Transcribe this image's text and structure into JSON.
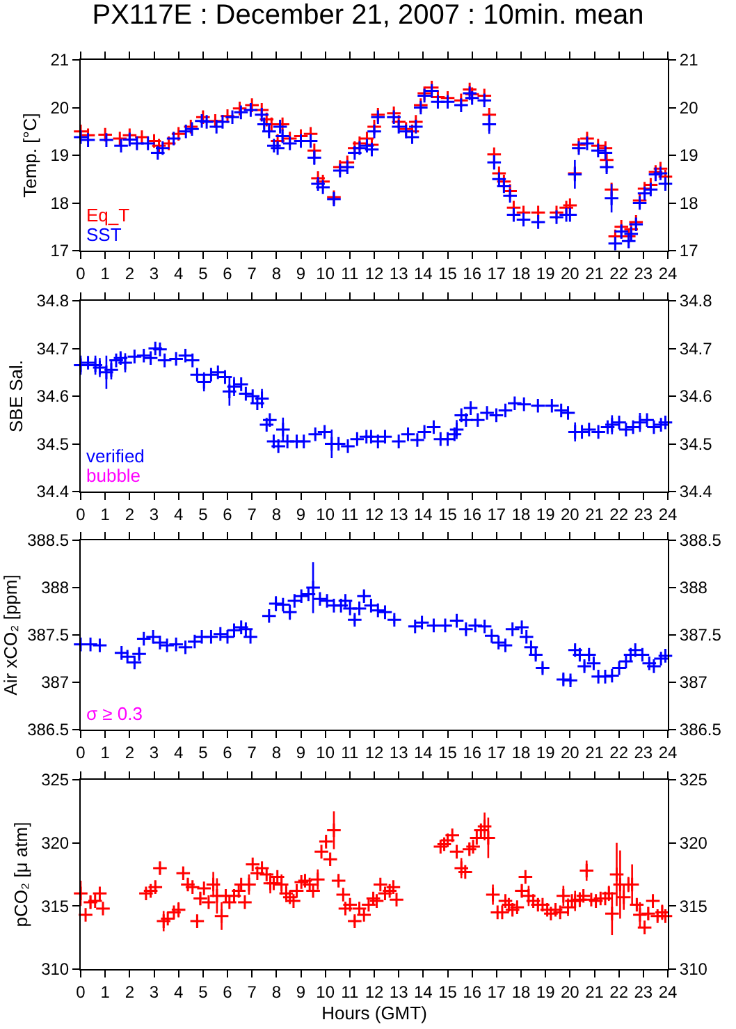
{
  "chart_data": [
    {
      "type": "scatter",
      "title": "PX117E : December 21, 2007 : 10min. mean",
      "ylabel": "Temp. [°C]",
      "xlim": [
        0,
        24
      ],
      "xticks": [
        0,
        1,
        2,
        3,
        4,
        5,
        6,
        7,
        8,
        9,
        10,
        11,
        12,
        13,
        14,
        15,
        16,
        17,
        18,
        19,
        20,
        21,
        22,
        23,
        24
      ],
      "ylim": [
        17,
        21
      ],
      "yticks": [
        17,
        18,
        19,
        20,
        21
      ],
      "y2lim": [
        17,
        21
      ],
      "y2ticks": [
        17,
        18,
        19,
        20,
        21
      ],
      "marker": "cross",
      "series": [
        {
          "name": "Eq_T",
          "color": "#ff0000",
          "x": [
            0,
            0.3,
            1,
            1.6,
            2,
            2.5,
            3,
            3.2,
            3.6,
            4,
            4.5,
            5,
            5.5,
            6,
            6.5,
            7,
            7.4,
            7.6,
            7.8,
            8.05,
            8.25,
            8.55,
            9,
            9.4,
            9.55,
            9.7,
            9.9,
            10.35,
            10.6,
            10.9,
            11.2,
            11.4,
            11.7,
            11.9,
            12,
            12.15,
            12.8,
            13,
            13.3,
            13.55,
            13.7,
            13.9,
            14.05,
            14.35,
            14.6,
            15,
            15.55,
            15.9,
            16,
            16.5,
            16.7,
            16.9,
            17.1,
            17.3,
            17.55,
            17.7,
            18.1,
            18.7,
            19.45,
            19.85,
            20,
            20.2,
            20.36,
            20.7,
            21.15,
            21.45,
            21.5,
            21.7,
            21.85,
            22.1,
            22.4,
            22.5,
            22.7,
            22.85,
            23.05,
            23.3,
            23.5,
            23.7,
            23.9
          ],
          "values": [
            19.5,
            19.42,
            19.43,
            19.35,
            19.42,
            19.38,
            19.3,
            19.2,
            19.25,
            19.45,
            19.6,
            19.8,
            19.72,
            19.82,
            19.98,
            20.05,
            19.95,
            19.75,
            19.65,
            19.3,
            19.65,
            19.35,
            19.4,
            19.45,
            19.1,
            18.52,
            18.45,
            18.12,
            18.75,
            18.85,
            19.15,
            19.25,
            19.35,
            19.22,
            19.6,
            19.85,
            19.88,
            19.7,
            19.55,
            19.5,
            19.7,
            20.05,
            20.3,
            20.42,
            20.22,
            20.2,
            20.15,
            20.38,
            20.28,
            20.25,
            19.85,
            19.02,
            18.62,
            18.45,
            18.25,
            17.9,
            17.8,
            17.8,
            17.8,
            17.9,
            17.95,
            18.62,
            19.22,
            19.35,
            19.2,
            19.15,
            18.9,
            18.28,
            17.3,
            17.5,
            17.3,
            17.45,
            17.6,
            18.05,
            18.3,
            18.38,
            18.65,
            18.72,
            18.55
          ]
        },
        {
          "name": "SST",
          "color": "#0000ff",
          "x": [
            0,
            0.3,
            1.05,
            1.65,
            2,
            2.3,
            2.75,
            3.15,
            3.35,
            3.8,
            4.3,
            4.55,
            4.95,
            5.15,
            5.55,
            5.8,
            6.2,
            6.55,
            6.95,
            7.4,
            7.5,
            7.7,
            7.9,
            8.05,
            8.15,
            8.25,
            8.55,
            9,
            9.4,
            9.55,
            9.7,
            9.9,
            10.35,
            10.6,
            10.9,
            11.2,
            11.4,
            11.7,
            11.9,
            12,
            12.15,
            12.8,
            13,
            13.3,
            13.55,
            13.7,
            13.9,
            14.05,
            14.35,
            14.6,
            15,
            15.55,
            15.9,
            16,
            16.5,
            16.7,
            16.9,
            17.1,
            17.3,
            17.55,
            17.7,
            18.1,
            18.7,
            19.45,
            19.85,
            20,
            20.2,
            20.36,
            20.7,
            21.15,
            21.45,
            21.5,
            21.7,
            21.85,
            22.1,
            22.4,
            22.5,
            22.7,
            22.85,
            23.05,
            23.3,
            23.5,
            23.7,
            23.9
          ],
          "values": [
            19.38,
            19.32,
            19.32,
            19.2,
            19.33,
            19.25,
            19.25,
            19.05,
            19.15,
            19.35,
            19.5,
            19.55,
            19.72,
            19.7,
            19.6,
            19.7,
            19.8,
            19.9,
            19.95,
            19.85,
            19.65,
            19.5,
            19.2,
            19.15,
            19.6,
            19.4,
            19.25,
            19.3,
            19.3,
            18.95,
            18.4,
            18.33,
            18.08,
            18.68,
            18.75,
            19.05,
            19.15,
            19.2,
            19.12,
            19.5,
            19.8,
            19.8,
            19.6,
            19.5,
            19.38,
            19.6,
            20,
            20.25,
            20.35,
            20.12,
            20.12,
            20.05,
            20.3,
            20.2,
            20.15,
            19.65,
            18.85,
            18.5,
            18.35,
            18.15,
            17.75,
            17.65,
            17.6,
            17.7,
            17.75,
            17.75,
            18.6,
            19.15,
            19.25,
            19.1,
            19.05,
            18.75,
            18.1,
            17.15,
            17.4,
            17.2,
            17.35,
            17.55,
            18,
            18.2,
            18.28,
            18.6,
            18.62,
            18.4
          ],
          "errors": [
            null,
            null,
            null,
            null,
            null,
            null,
            null,
            null,
            null,
            null,
            null,
            null,
            null,
            null,
            null,
            null,
            null,
            null,
            null,
            null,
            0.1,
            0.1,
            null,
            null,
            null,
            0.1,
            null,
            null,
            null,
            0.15,
            0.1,
            null,
            0.15,
            null,
            null,
            null,
            null,
            null,
            null,
            0.08,
            null,
            null,
            null,
            null,
            null,
            null,
            null,
            null,
            null,
            null,
            null,
            null,
            null,
            null,
            null,
            0.2,
            0.15,
            null,
            null,
            null,
            0.1,
            null,
            null,
            null,
            null,
            null,
            0.3,
            null,
            null,
            null,
            null,
            0.1,
            0.3,
            0.1,
            0.15,
            0.15,
            0.15,
            null,
            null,
            null,
            null,
            null,
            null,
            null
          ]
        }
      ]
    },
    {
      "type": "scatter",
      "ylabel": "SBE Sal.",
      "xlim": [
        0,
        24
      ],
      "xticks": [
        0,
        1,
        2,
        3,
        4,
        5,
        6,
        7,
        8,
        9,
        10,
        11,
        12,
        13,
        14,
        15,
        16,
        17,
        18,
        19,
        20,
        21,
        22,
        23,
        24
      ],
      "ylim": [
        34.4,
        34.8
      ],
      "yticks": [
        34.4,
        34.5,
        34.6,
        34.7,
        34.8
      ],
      "y2lim": [
        34.4,
        34.8
      ],
      "y2ticks": [
        34.4,
        34.5,
        34.6,
        34.7,
        34.8
      ],
      "marker": "cross",
      "series": [
        {
          "name": "verified",
          "color": "#0000ff",
          "x": [
            0,
            0.3,
            0.6,
            0.78,
            1.05,
            1.25,
            1.45,
            1.63,
            1.82,
            2.2,
            2.58,
            2.86,
            3.05,
            3.24,
            3.43,
            3.9,
            4.28,
            4.57,
            4.76,
            5.04,
            5.33,
            5.61,
            5.9,
            6.08,
            6.27,
            6.56,
            6.75,
            7.03,
            7.22,
            7.41,
            7.6,
            7.73,
            7.89,
            8.08,
            8.27,
            8.45,
            8.83,
            9.12,
            9.59,
            9.97,
            10.26,
            10.54,
            10.92,
            11.3,
            11.68,
            11.87,
            12.15,
            12.44,
            13,
            13.38,
            13.76,
            14.05,
            14.43,
            14.71,
            15,
            15.28,
            15.37,
            15.56,
            15.75,
            15.94,
            16.23,
            16.61,
            16.99,
            17.36,
            17.74,
            18.12,
            18.69,
            19.26,
            19.64,
            19.92,
            20.21,
            20.49,
            20.78,
            21.16,
            21.54,
            21.72,
            22.01,
            22.29,
            22.58,
            22.86,
            23.15,
            23.43,
            23.72,
            23.9
          ],
          "values": [
            34.665,
            34.67,
            34.665,
            34.66,
            34.65,
            34.655,
            34.675,
            34.68,
            34.67,
            34.683,
            34.685,
            34.68,
            34.7,
            34.698,
            34.675,
            34.678,
            34.685,
            34.675,
            34.645,
            34.63,
            34.645,
            34.65,
            34.64,
            34.61,
            34.62,
            34.625,
            34.605,
            34.6,
            34.585,
            34.595,
            34.54,
            34.55,
            34.505,
            34.495,
            34.53,
            34.505,
            34.505,
            34.505,
            34.52,
            34.525,
            34.5,
            34.5,
            34.495,
            34.51,
            34.515,
            34.515,
            34.505,
            34.515,
            34.505,
            34.52,
            34.508,
            34.525,
            34.535,
            34.51,
            34.51,
            34.52,
            34.53,
            34.56,
            34.55,
            34.575,
            34.55,
            34.565,
            34.56,
            34.57,
            34.585,
            34.583,
            34.58,
            34.58,
            34.57,
            34.565,
            34.525,
            34.525,
            34.53,
            34.525,
            34.535,
            34.54,
            34.545,
            34.53,
            34.535,
            34.545,
            34.55,
            34.535,
            34.54,
            34.545
          ],
          "errors": [
            0.02,
            null,
            0.02,
            0.02,
            0.035,
            0.02,
            null,
            0.01,
            0.02,
            null,
            null,
            null,
            null,
            null,
            null,
            null,
            null,
            null,
            null,
            0.02,
            null,
            null,
            null,
            0.03,
            0.02,
            null,
            null,
            null,
            null,
            0.02,
            null,
            null,
            null,
            null,
            0.025,
            null,
            null,
            null,
            null,
            null,
            0.03,
            null,
            null,
            null,
            null,
            null,
            null,
            null,
            null,
            null,
            null,
            null,
            null,
            null,
            null,
            null,
            0.02,
            null,
            null,
            null,
            null,
            null,
            null,
            null,
            null,
            null,
            null,
            null,
            null,
            null,
            0.02,
            null,
            null,
            null,
            null,
            0.02,
            null,
            null,
            null,
            0.02,
            null,
            null,
            null,
            null
          ]
        },
        {
          "name": "bubble",
          "color": "#ff00ff"
        }
      ]
    },
    {
      "type": "scatter",
      "ylabel": "Air xCO₂ [ppm]",
      "xlim": [
        0,
        24
      ],
      "xticks": [
        0,
        1,
        2,
        3,
        4,
        5,
        6,
        7,
        8,
        9,
        10,
        11,
        12,
        13,
        14,
        15,
        16,
        17,
        18,
        19,
        20,
        21,
        22,
        23,
        24
      ],
      "ylim": [
        386.5,
        388.5
      ],
      "yticks": [
        386.5,
        387,
        387.5,
        388,
        388.5
      ],
      "y2lim": [
        386.5,
        388.5
      ],
      "y2ticks": [
        386.5,
        387,
        387.5,
        388,
        388.5
      ],
      "marker": "cross",
      "series": [
        {
          "color": "#0000ff",
          "x": [
            0,
            0.4,
            0.78,
            1.67,
            1.91,
            2.2,
            2.39,
            2.58,
            2.96,
            3.24,
            3.53,
            3.9,
            4.28,
            4.66,
            4.95,
            5.33,
            5.71,
            6,
            6.27,
            6.56,
            6.75,
            6.94,
            7.7,
            7.98,
            8.27,
            8.55,
            8.74,
            9.02,
            9.31,
            9.5,
            9.78,
            10.07,
            10.35,
            10.64,
            10.82,
            11.01,
            11.2,
            11.39,
            11.58,
            11.87,
            12.15,
            12.44,
            12.82,
            13.67,
            13.95,
            14.43,
            14.9,
            15.37,
            15.75,
            16.13,
            16.51,
            16.8,
            17.08,
            17.36,
            17.65,
            18.03,
            18.22,
            18.41,
            18.6,
            18.88,
            19.73,
            20.02,
            20.21,
            20.4,
            20.59,
            20.78,
            20.97,
            21.16,
            21.44,
            21.72,
            22.01,
            22.29,
            22.48,
            22.67,
            22.96,
            23.24,
            23.43,
            23.72,
            23.9
          ],
          "values": [
            387.4,
            387.4,
            387.39,
            387.31,
            387.27,
            387.21,
            387.3,
            387.46,
            387.48,
            387.42,
            387.39,
            387.4,
            387.37,
            387.43,
            387.48,
            387.48,
            387.51,
            387.48,
            387.55,
            387.58,
            387.56,
            387.48,
            387.7,
            387.83,
            387.82,
            387.74,
            387.86,
            387.91,
            387.93,
            388,
            387.88,
            387.86,
            387.81,
            387.81,
            387.86,
            387.78,
            387.66,
            387.78,
            387.91,
            387.81,
            387.76,
            387.74,
            387.66,
            387.59,
            387.63,
            387.6,
            387.6,
            387.65,
            387.56,
            387.6,
            387.59,
            387.49,
            387.42,
            387.39,
            387.56,
            387.58,
            387.48,
            387.37,
            387.29,
            387.15,
            387.03,
            387.02,
            387.34,
            387.29,
            387.17,
            387.29,
            387.2,
            387.06,
            387.06,
            387.07,
            387.15,
            387.22,
            387.29,
            387.34,
            387.29,
            387.2,
            387.17,
            387.25,
            387.28
          ],
          "errors": [
            null,
            null,
            null,
            null,
            null,
            0.05,
            0.05,
            null,
            null,
            null,
            null,
            null,
            0.04,
            null,
            null,
            null,
            null,
            null,
            null,
            null,
            null,
            null,
            null,
            0.08,
            null,
            0.08,
            null,
            null,
            null,
            0.27,
            null,
            null,
            null,
            null,
            null,
            null,
            0.05,
            null,
            0.06,
            null,
            null,
            null,
            0.04,
            null,
            null,
            null,
            null,
            null,
            0.04,
            null,
            null,
            null,
            null,
            0.05,
            null,
            null,
            null,
            null,
            0.05,
            0.05,
            0.06,
            0.04,
            0.06,
            0.05,
            0.05,
            0.05,
            0.05,
            null,
            null,
            null,
            null,
            null,
            null,
            null,
            null,
            null,
            null,
            null,
            null
          ]
        },
        {
          "name": "σ ≥ 0.3",
          "color": "#ff00ff"
        }
      ]
    },
    {
      "type": "scatter",
      "xlabel": "Hours (GMT)",
      "ylabel": "pCO₂ [μ atm]",
      "xlim": [
        0,
        24
      ],
      "xticks": [
        0,
        1,
        2,
        3,
        4,
        5,
        6,
        7,
        8,
        9,
        10,
        11,
        12,
        13,
        14,
        15,
        16,
        17,
        18,
        19,
        20,
        21,
        22,
        23,
        24
      ],
      "ylim": [
        310,
        325
      ],
      "yticks": [
        310,
        315,
        320,
        325
      ],
      "y2lim": [
        310,
        325
      ],
      "y2ticks": [
        310,
        315,
        320,
        325
      ],
      "marker": "cross",
      "series": [
        {
          "color": "#ff0000",
          "x": [
            0,
            0.2,
            0.4,
            0.59,
            0.78,
            0.91,
            2.67,
            2.86,
            3.05,
            3.24,
            3.39,
            3.56,
            3.81,
            4,
            4.19,
            4.38,
            4.57,
            4.76,
            4.89,
            5.04,
            5.23,
            5.42,
            5.57,
            5.76,
            5.93,
            6.08,
            6.27,
            6.46,
            6.56,
            6.71,
            6.88,
            7.03,
            7.22,
            7.41,
            7.6,
            7.75,
            7.89,
            8.04,
            8.21,
            8.4,
            8.55,
            8.7,
            8.83,
            9.02,
            9.17,
            9.36,
            9.5,
            9.69,
            9.84,
            10.03,
            10.2,
            10.35,
            10.54,
            10.73,
            10.82,
            11.01,
            11.2,
            11.39,
            11.58,
            11.77,
            11.96,
            12.1,
            12.25,
            12.44,
            12.63,
            12.78,
            12.91,
            14.71,
            14.86,
            15,
            15.19,
            15.37,
            15.56,
            15.72,
            15.89,
            16.04,
            16.19,
            16.36,
            16.51,
            16.66,
            16.85,
            17.04,
            17.23,
            17.36,
            17.5,
            17.65,
            17.84,
            18.03,
            18.18,
            18.31,
            18.5,
            18.69,
            18.88,
            19.07,
            19.22,
            19.41,
            19.6,
            19.73,
            19.92,
            20.08,
            20.21,
            20.4,
            20.55,
            20.68,
            20.87,
            21.06,
            21.25,
            21.44,
            21.59,
            21.72,
            21.91,
            22.05,
            22.2,
            22.39,
            22.54,
            22.73,
            22.86,
            23.05,
            23.2,
            23.39,
            23.58,
            23.77,
            23.9
          ],
          "values": [
            316,
            314.3,
            315.3,
            315.4,
            316,
            314.8,
            316,
            316.2,
            316.5,
            318,
            313.8,
            314,
            314.5,
            314.7,
            317.6,
            316.7,
            316.5,
            313.8,
            315.6,
            316.4,
            315.3,
            316.7,
            315.8,
            314.2,
            315.8,
            315.3,
            315.8,
            316.2,
            316.7,
            315.3,
            316.7,
            318.3,
            317.6,
            318,
            317.5,
            316.8,
            316.8,
            317.3,
            316.7,
            316,
            315.7,
            315.4,
            316.2,
            316.9,
            317,
            316.7,
            316.2,
            317.1,
            319.3,
            320.1,
            318.7,
            321,
            317,
            315.9,
            314.8,
            315.1,
            313.8,
            314.8,
            314.3,
            315.1,
            315.6,
            315.4,
            316.7,
            316,
            316.2,
            316.5,
            315.5,
            319.7,
            319.9,
            320.2,
            320.6,
            319.3,
            318,
            317.7,
            319.5,
            319.7,
            320.4,
            321,
            321.3,
            320.4,
            315.9,
            314.5,
            314.5,
            315.4,
            315.1,
            314.7,
            314.9,
            316.2,
            317.3,
            315.8,
            315.4,
            315.1,
            315.1,
            314.7,
            314.4,
            314.7,
            314.5,
            315.8,
            314.9,
            315.4,
            315.4,
            315.5,
            315.8,
            317.8,
            315.5,
            315.4,
            315.6,
            315.6,
            316,
            314.4,
            317.5,
            316.7,
            315.7,
            316.7,
            316.7,
            315.1,
            314.3,
            313.3,
            314.4,
            315.4,
            314.2,
            314.5,
            314.2
          ],
          "errors": [
            1,
            null,
            0.5,
            null,
            null,
            null,
            null,
            null,
            0.5,
            0.5,
            0.8,
            null,
            null,
            0.6,
            0.5,
            0.5,
            null,
            0.5,
            0.5,
            null,
            null,
            1,
            1.4,
            1.1,
            0.5,
            null,
            null,
            null,
            0.4,
            null,
            0.8,
            null,
            null,
            null,
            null,
            0.8,
            null,
            null,
            0.8,
            0.7,
            null,
            null,
            null,
            null,
            null,
            null,
            null,
            0.8,
            null,
            0.4,
            0.5,
            1.5,
            0.5,
            null,
            null,
            null,
            0.4,
            null,
            null,
            null,
            0.5,
            null,
            null,
            null,
            null,
            null,
            null,
            null,
            0.5,
            null,
            null,
            null,
            0.8,
            null,
            0.5,
            null,
            null,
            null,
            1.1,
            1.6,
            0.8,
            null,
            null,
            null,
            null,
            0.5,
            null,
            0.5,
            null,
            0.8,
            null,
            0.5,
            null,
            null,
            null,
            0.5,
            null,
            0.8,
            0.7,
            null,
            0.8,
            0.6,
            0.5,
            0.8,
            null,
            null,
            null,
            null,
            0.6,
            1.7,
            2.5,
            2.7,
            1,
            0.6,
            1.6,
            0.5,
            1,
            null,
            0.5,
            0.5,
            0.4,
            0.6,
            0.5
          ]
        }
      ]
    }
  ]
}
